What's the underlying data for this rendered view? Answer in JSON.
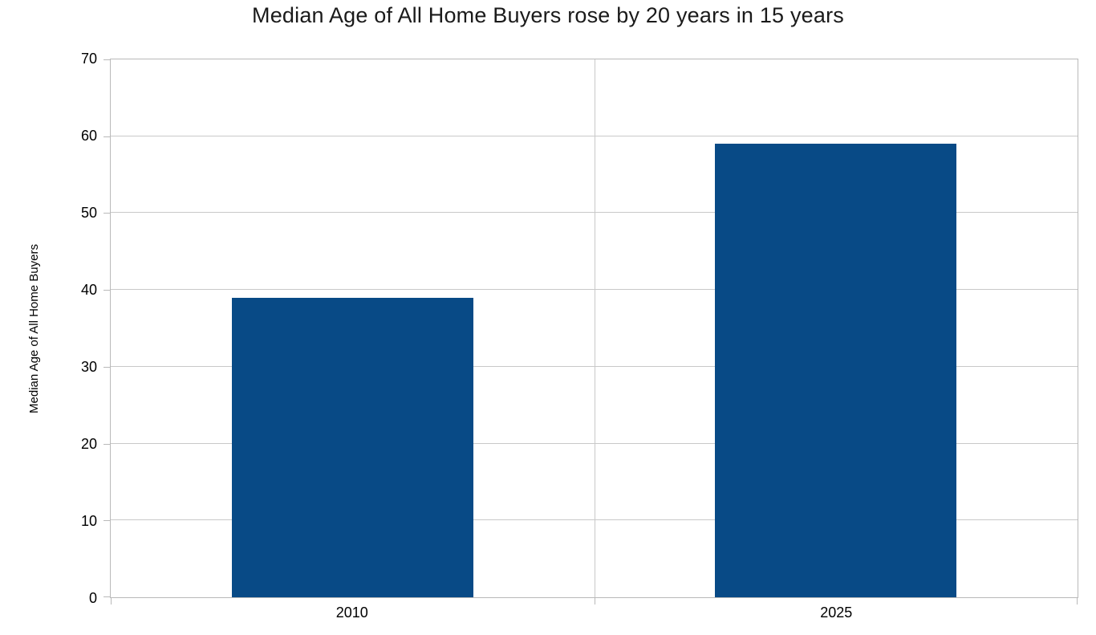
{
  "title": "Median Age of All Home Buyers rose by 20 years in 15 years",
  "colors": {
    "bar": "#084a86",
    "gridline": "#c9c9c9",
    "axis_line": "#b9b9b9",
    "title_text": "#1a1a1a",
    "label_text": "#000000",
    "background": "#ffffff"
  },
  "chart_data": {
    "type": "bar",
    "title": "Median Age of All Home Buyers rose by 20 years in 15 years",
    "categories": [
      "2010",
      "2025"
    ],
    "values": [
      39,
      59
    ],
    "xlabel": "",
    "ylabel": "Median Age of All Home Buyers",
    "ylim": [
      0,
      70
    ],
    "ytick_step": 10,
    "ytick_labels": [
      "0",
      "10",
      "20",
      "30",
      "40",
      "50",
      "60",
      "70"
    ],
    "grid": true,
    "legend": "none",
    "bar_width_fraction_of_category": 0.5
  }
}
